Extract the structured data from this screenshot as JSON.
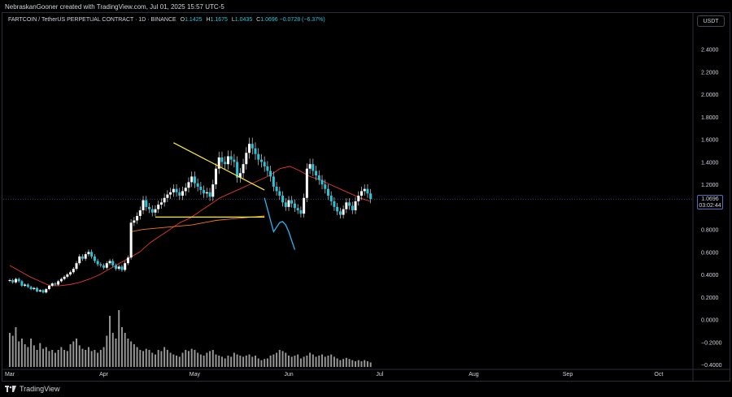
{
  "header": {
    "caption": "NebraskanGooner created with TradingView.com, Jul 01, 2025 15:57 UTC-5"
  },
  "legend": {
    "symbol": "FARTCOIN / TetherUS PERPETUAL CONTRACT · 1D · BINANCE",
    "o_label": "O",
    "o_value": "1.1425",
    "h_label": "H",
    "h_value": "1.1675",
    "l_label": "L",
    "l_value": "1.0435",
    "c_label": "C",
    "c_value": "1.0696",
    "change": "−0.0728 (−6.37%)"
  },
  "currency": "USDT",
  "price_badge": {
    "price": "1.0696",
    "countdown": "03:02:44"
  },
  "footer": {
    "brand": "TradingView"
  },
  "colors": {
    "candle": "#ffffff",
    "candle_wick": "#d1d4dc",
    "candle_down": "#26c6da",
    "ma_short": "#e53935",
    "ma_long": "#f57c00",
    "trendline": "#ffeb3b",
    "projection": "#29b6f6",
    "volume": "#c8c8c8",
    "grid": "#131722",
    "axis_text": "#d1d4dc"
  },
  "chart_data": {
    "type": "candlestick",
    "title": "",
    "y_axis": {
      "min": -0.4,
      "max": 2.6,
      "side": "right",
      "ticks": [
        "2.4000",
        "2.2000",
        "2.0000",
        "1.8000",
        "1.6000",
        "1.4000",
        "1.2000",
        "1.0000",
        "0.8000",
        "0.6000",
        "0.4000",
        "0.2000",
        "0.0000",
        "−0.2000",
        "−0.4000"
      ],
      "tick_values": [
        2.4,
        2.2,
        2.0,
        1.8,
        1.6,
        1.4,
        1.2,
        1.0,
        0.8,
        0.6,
        0.4,
        0.2,
        0.0,
        -0.2,
        -0.4
      ]
    },
    "x_axis": {
      "labels": [
        "Mar",
        "Apr",
        "May",
        "Jun",
        "Jul",
        "Aug",
        "Sep",
        "Oct"
      ],
      "label_day_index": [
        0,
        31,
        61,
        92,
        122,
        153,
        184,
        214
      ],
      "total_days": 232
    },
    "grid": false,
    "last_price": 1.0696,
    "candles_close": [
      0.35,
      0.33,
      0.36,
      0.34,
      0.3,
      0.31,
      0.29,
      0.27,
      0.28,
      0.25,
      0.26,
      0.24,
      0.27,
      0.3,
      0.32,
      0.31,
      0.34,
      0.36,
      0.38,
      0.4,
      0.42,
      0.45,
      0.5,
      0.56,
      0.54,
      0.58,
      0.6,
      0.56,
      0.52,
      0.49,
      0.48,
      0.46,
      0.5,
      0.52,
      0.48,
      0.45,
      0.47,
      0.44,
      0.5,
      0.55,
      0.86,
      0.88,
      0.92,
      0.97,
      1.06,
      1.0,
      0.98,
      0.95,
      0.98,
      1.02,
      1.04,
      1.08,
      1.11,
      1.13,
      1.16,
      1.13,
      1.1,
      1.14,
      1.17,
      1.22,
      1.27,
      1.21,
      1.18,
      1.15,
      1.12,
      1.13,
      1.09,
      1.2,
      1.34,
      1.44,
      1.4,
      1.38,
      1.45,
      1.42,
      1.4,
      1.26,
      1.3,
      1.38,
      1.48,
      1.56,
      1.52,
      1.47,
      1.42,
      1.4,
      1.36,
      1.32,
      1.27,
      1.18,
      1.14,
      1.1,
      1.04,
      1.0,
      1.06,
      1.03,
      0.99,
      0.97,
      0.94,
      1.08,
      1.34,
      1.38,
      1.32,
      1.28,
      1.24,
      1.2,
      1.16,
      1.1,
      1.05,
      1.0,
      0.96,
      0.93,
      0.98,
      1.04,
      1.01,
      0.97,
      1.05,
      1.1,
      1.14,
      1.16,
      1.12,
      1.07
    ],
    "ma_short": [
      0.48,
      0.43,
      0.38,
      0.34,
      0.3,
      0.3,
      0.31,
      0.33,
      0.36,
      0.4,
      0.45,
      0.5,
      0.55,
      0.6,
      0.68,
      0.74,
      0.8,
      0.86,
      0.9,
      0.96,
      1.02,
      1.08,
      1.12,
      1.16,
      1.2,
      1.24,
      1.28,
      1.34,
      1.36,
      1.32,
      1.27,
      1.24,
      1.2,
      1.16,
      1.12,
      1.08,
      1.05
    ],
    "ma_long": [
      0.78,
      0.8,
      0.81,
      0.82,
      0.83,
      0.84,
      0.86,
      0.88,
      0.89,
      0.9,
      0.91,
      0.92
    ],
    "volume_units": [
      0.6,
      0.55,
      0.7,
      0.45,
      0.5,
      0.4,
      0.35,
      0.5,
      0.38,
      0.3,
      0.42,
      0.32,
      0.35,
      0.28,
      0.3,
      0.25,
      0.3,
      0.35,
      0.3,
      0.28,
      0.4,
      0.45,
      0.5,
      0.38,
      0.32,
      0.3,
      0.35,
      0.28,
      0.3,
      0.25,
      0.3,
      0.35,
      0.55,
      0.9,
      0.6,
      0.5,
      1.0,
      0.7,
      0.6,
      0.5,
      0.45,
      0.4,
      0.35,
      0.3,
      0.28,
      0.32,
      0.3,
      0.25,
      0.22,
      0.3,
      0.28,
      0.35,
      0.3,
      0.25,
      0.22,
      0.2,
      0.18,
      0.25,
      0.3,
      0.28,
      0.32,
      0.3,
      0.25,
      0.22,
      0.2,
      0.25,
      0.28,
      0.3,
      0.22,
      0.2,
      0.18,
      0.15,
      0.2,
      0.18,
      0.25,
      0.22,
      0.2,
      0.18,
      0.2,
      0.22,
      0.18,
      0.2,
      0.15,
      0.12,
      0.14,
      0.15,
      0.2,
      0.22,
      0.25,
      0.3,
      0.28,
      0.25,
      0.2,
      0.18,
      0.2,
      0.22,
      0.15,
      0.18,
      0.2,
      0.25,
      0.22,
      0.18,
      0.2,
      0.22,
      0.18,
      0.2,
      0.22,
      0.18,
      0.15,
      0.12,
      0.14,
      0.16,
      0.14,
      0.12,
      0.1,
      0.12,
      0.1,
      0.12,
      0.1,
      0.08
    ],
    "annotations": {
      "resistance_line": {
        "from": [
          54,
          1.57
        ],
        "to": [
          84,
          1.15
        ]
      },
      "support_line": {
        "from": [
          48,
          0.91
        ],
        "to": [
          84,
          0.91
        ]
      },
      "projection_path": [
        [
          84,
          1.08
        ],
        [
          85,
          0.98
        ],
        [
          86,
          0.88
        ],
        [
          87,
          0.78
        ],
        [
          88,
          0.82
        ],
        [
          89,
          0.86
        ],
        [
          90,
          0.87
        ],
        [
          91,
          0.84
        ],
        [
          92,
          0.78
        ],
        [
          93,
          0.7
        ],
        [
          94,
          0.62
        ]
      ]
    }
  }
}
